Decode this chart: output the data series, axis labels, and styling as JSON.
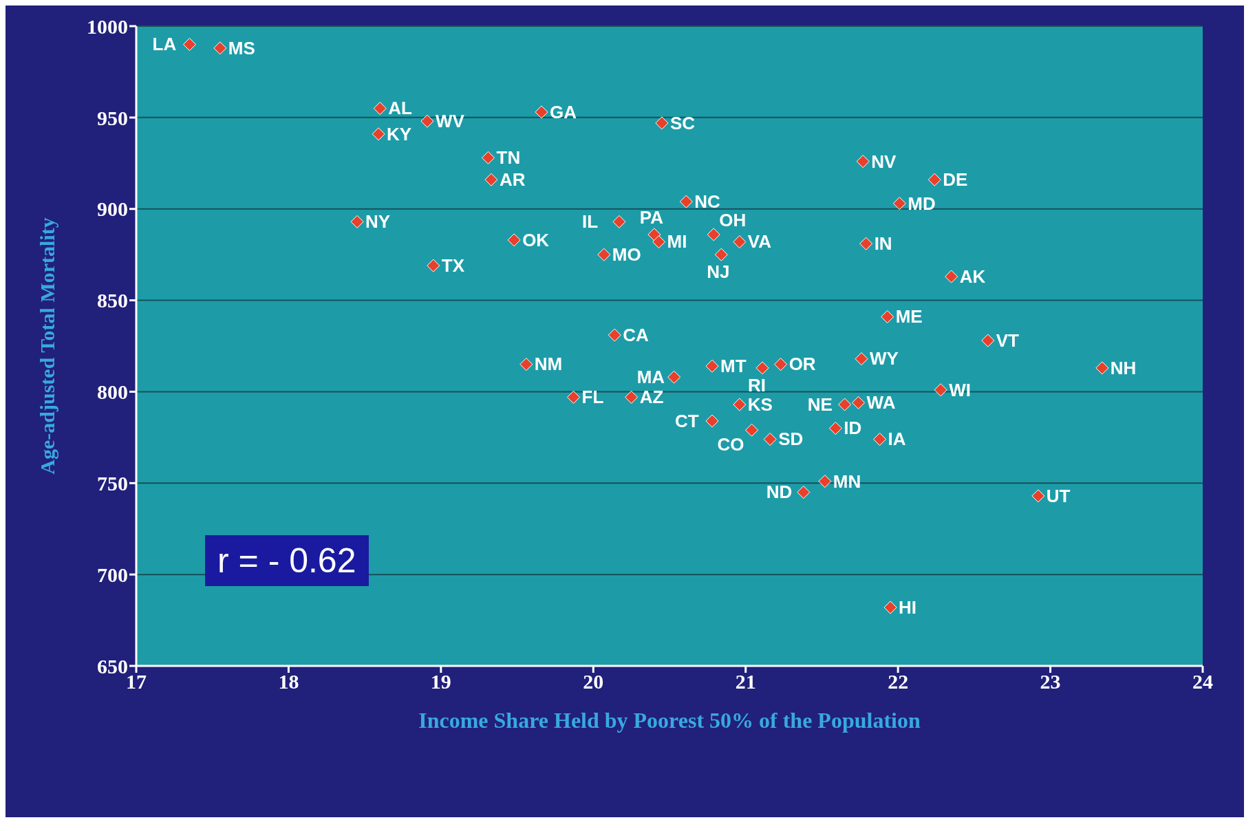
{
  "chart_data": {
    "type": "scatter",
    "xlabel": "Income Share Held by Poorest 50% of the Population",
    "ylabel": "Age-adjusted Total Mortality",
    "xlim": [
      17,
      24
    ],
    "xticks": [
      17,
      18,
      19,
      20,
      21,
      22,
      23,
      24
    ],
    "ylim": [
      650,
      1000
    ],
    "yticks": [
      650,
      700,
      750,
      800,
      850,
      900,
      950,
      1000
    ],
    "grid": "y",
    "marker": "diamond",
    "legend": false,
    "series": [
      {
        "color": "#e8402a",
        "x": [
          17.35,
          17.55,
          18.6,
          18.59,
          18.91,
          19.66,
          20.45,
          19.31,
          19.33,
          18.45,
          18.95,
          19.48,
          20.17,
          20.4,
          20.43,
          20.07,
          20.61,
          20.79,
          20.84,
          20.96,
          21.77,
          22.24,
          22.01,
          21.79,
          22.35,
          21.93,
          22.59,
          20.14,
          19.56,
          20.78,
          21.11,
          21.23,
          21.76,
          23.34,
          20.53,
          22.28,
          19.87,
          20.25,
          20.96,
          21.65,
          21.74,
          20.78,
          21.04,
          21.16,
          21.59,
          21.88,
          21.38,
          21.52,
          22.92,
          21.95
        ],
        "values": [
          990,
          988,
          955,
          941,
          948,
          953,
          947,
          928,
          916,
          893,
          869,
          883,
          893,
          886,
          882,
          875,
          904,
          886,
          875,
          882,
          926,
          916,
          903,
          881,
          863,
          841,
          828,
          831,
          815,
          814,
          813,
          815,
          818,
          813,
          808,
          801,
          797,
          797,
          793,
          793,
          794,
          784,
          779,
          774,
          780,
          774,
          745,
          751,
          743,
          682
        ]
      }
    ],
    "annotations": [
      "r = - 0.62",
      {
        "text": "LA",
        "x": 17.35,
        "y": 990
      },
      {
        "text": "MS",
        "x": 17.55,
        "y": 988
      },
      {
        "text": "AL",
        "x": 18.6,
        "y": 955
      },
      {
        "text": "KY",
        "x": 18.59,
        "y": 941
      },
      {
        "text": "WV",
        "x": 18.91,
        "y": 948
      },
      {
        "text": "GA",
        "x": 19.66,
        "y": 953
      },
      {
        "text": "SC",
        "x": 20.45,
        "y": 947
      },
      {
        "text": "TN",
        "x": 19.31,
        "y": 928
      },
      {
        "text": "AR",
        "x": 19.33,
        "y": 916
      },
      {
        "text": "NY",
        "x": 18.45,
        "y": 893
      },
      {
        "text": "TX",
        "x": 18.95,
        "y": 869
      },
      {
        "text": "OK",
        "x": 19.48,
        "y": 883
      },
      {
        "text": "IL",
        "x": 20.17,
        "y": 893
      },
      {
        "text": "PA",
        "x": 20.4,
        "y": 886
      },
      {
        "text": "MI",
        "x": 20.43,
        "y": 882
      },
      {
        "text": "MO",
        "x": 20.07,
        "y": 875
      },
      {
        "text": "NC",
        "x": 20.61,
        "y": 904
      },
      {
        "text": "OH",
        "x": 20.79,
        "y": 886
      },
      {
        "text": "NJ",
        "x": 20.84,
        "y": 875
      },
      {
        "text": "VA",
        "x": 20.96,
        "y": 882
      },
      {
        "text": "NV",
        "x": 21.77,
        "y": 926
      },
      {
        "text": "DE",
        "x": 22.24,
        "y": 916
      },
      {
        "text": "MD",
        "x": 22.01,
        "y": 903
      },
      {
        "text": "IN",
        "x": 21.79,
        "y": 881
      },
      {
        "text": "AK",
        "x": 22.35,
        "y": 863
      },
      {
        "text": "ME",
        "x": 21.93,
        "y": 841
      },
      {
        "text": "VT",
        "x": 22.59,
        "y": 828
      },
      {
        "text": "CA",
        "x": 20.14,
        "y": 831
      },
      {
        "text": "NM",
        "x": 19.56,
        "y": 815
      },
      {
        "text": "MT",
        "x": 20.78,
        "y": 814
      },
      {
        "text": "RI",
        "x": 21.11,
        "y": 813
      },
      {
        "text": "OR",
        "x": 21.23,
        "y": 815
      },
      {
        "text": "WY",
        "x": 21.76,
        "y": 818
      },
      {
        "text": "NH",
        "x": 23.34,
        "y": 813
      },
      {
        "text": "MA",
        "x": 20.53,
        "y": 808
      },
      {
        "text": "WI",
        "x": 22.28,
        "y": 801
      },
      {
        "text": "FL",
        "x": 19.87,
        "y": 797
      },
      {
        "text": "AZ",
        "x": 20.25,
        "y": 797
      },
      {
        "text": "KS",
        "x": 20.96,
        "y": 793
      },
      {
        "text": "NE",
        "x": 21.65,
        "y": 793
      },
      {
        "text": "WA",
        "x": 21.74,
        "y": 794
      },
      {
        "text": "CT",
        "x": 20.78,
        "y": 784
      },
      {
        "text": "CO",
        "x": 21.04,
        "y": 779
      },
      {
        "text": "SD",
        "x": 21.16,
        "y": 774
      },
      {
        "text": "ID",
        "x": 21.59,
        "y": 780
      },
      {
        "text": "IA",
        "x": 21.88,
        "y": 774
      },
      {
        "text": "ND",
        "x": 21.38,
        "y": 745
      },
      {
        "text": "MN",
        "x": 21.52,
        "y": 751
      },
      {
        "text": "UT",
        "x": 22.92,
        "y": 743
      },
      {
        "text": "HI",
        "x": 21.95,
        "y": 682
      }
    ]
  }
}
